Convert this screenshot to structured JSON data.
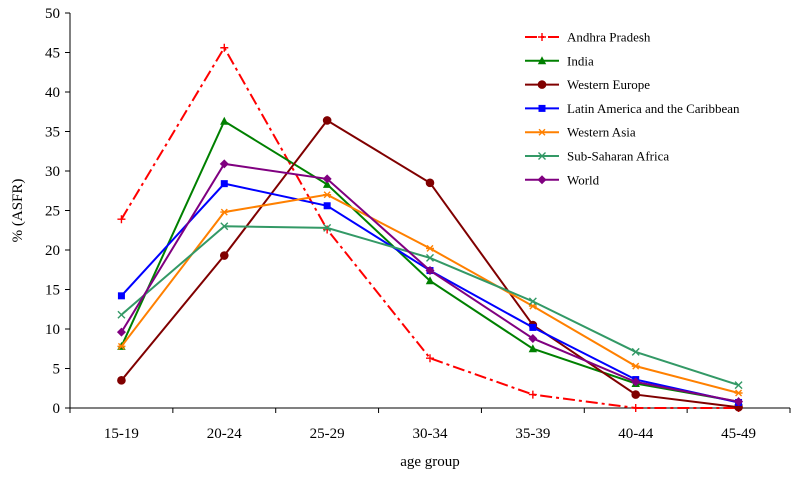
{
  "chart_data": {
    "type": "line",
    "title": "",
    "xlabel": "age group",
    "ylabel": "% (ASFR)",
    "categories": [
      "15-19",
      "20-24",
      "25-29",
      "30-34",
      "35-39",
      "40-44",
      "45-49"
    ],
    "ylim": [
      0,
      50
    ],
    "yticks": [
      0,
      5,
      10,
      15,
      20,
      25,
      30,
      35,
      40,
      45,
      50
    ],
    "grid": false,
    "legend_position": "top-right",
    "series": [
      {
        "name": "Andhra Pradesh",
        "values": [
          23.9,
          45.6,
          22.6,
          6.3,
          1.7,
          0.0,
          0.0
        ],
        "color": "#ff0000",
        "marker": "plus",
        "dash": "dashdot"
      },
      {
        "name": "India",
        "values": [
          7.8,
          36.3,
          28.3,
          16.1,
          7.5,
          3.1,
          0.8
        ],
        "color": "#008000",
        "marker": "triangle",
        "dash": "solid"
      },
      {
        "name": "Western Europe",
        "values": [
          3.5,
          19.3,
          36.4,
          28.5,
          10.5,
          1.7,
          0.1
        ],
        "color": "#800000",
        "marker": "circle",
        "dash": "solid"
      },
      {
        "name": "Latin America and the Caribbean",
        "values": [
          14.2,
          28.4,
          25.6,
          17.4,
          10.2,
          3.6,
          0.7
        ],
        "color": "#0000ff",
        "marker": "square",
        "dash": "solid"
      },
      {
        "name": "Western Asia",
        "values": [
          7.8,
          24.8,
          27.0,
          20.2,
          12.9,
          5.3,
          1.9
        ],
        "color": "#ff8000",
        "marker": "star",
        "dash": "solid"
      },
      {
        "name": "Sub-Saharan Africa",
        "values": [
          11.8,
          23.0,
          22.8,
          19.0,
          13.5,
          7.1,
          2.9
        ],
        "color": "#339966",
        "marker": "x",
        "dash": "solid"
      },
      {
        "name": "World",
        "values": [
          9.6,
          30.9,
          29.0,
          17.4,
          8.8,
          3.3,
          0.8
        ],
        "color": "#800080",
        "marker": "diamond",
        "dash": "solid"
      }
    ]
  }
}
